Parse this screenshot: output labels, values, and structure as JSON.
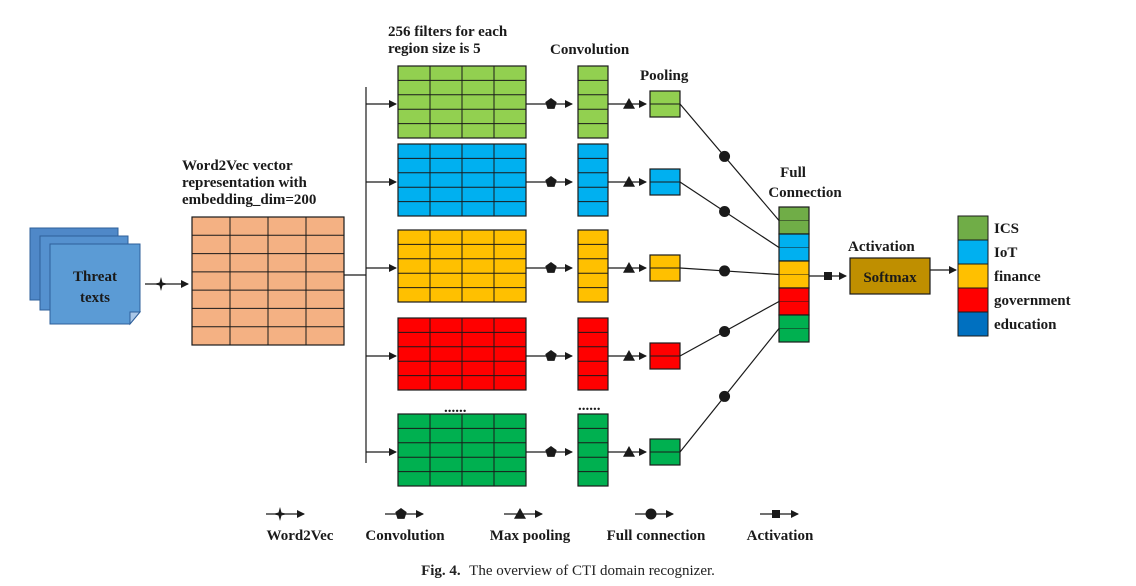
{
  "labels": {
    "threat_texts_line1": "Threat",
    "threat_texts_line2": "texts",
    "word2vec_line1": "Word2Vec vector",
    "word2vec_line2": "representation with",
    "word2vec_line3": "embedding_dim=200",
    "filters_line1": "256 filters for each",
    "filters_line2": "region size is 5",
    "convolution": "Convolution",
    "pooling": "Pooling",
    "full_connection_line1": "Full",
    "full_connection_line2": "Connection",
    "activation": "Activation",
    "softmax": "Softmax",
    "ellipsis": "......"
  },
  "outputs": [
    {
      "label": "ICS",
      "color": "#70ad47"
    },
    {
      "label": "IoT",
      "color": "#00b0f0"
    },
    {
      "label": "finance",
      "color": "#ffc000"
    },
    {
      "label": "government",
      "color": "#ff0000"
    },
    {
      "label": "education",
      "color": "#0070c0"
    }
  ],
  "branch_colors": [
    "#92d050",
    "#00b0f0",
    "#ffc000",
    "#ff0000",
    "#00b050"
  ],
  "fc_colors": [
    "#70ad47",
    "#00b0f0",
    "#ffc000",
    "#ff0000",
    "#00b050"
  ],
  "embedding_color": "#f4b183",
  "input_color": "#5b9bd5",
  "softmax_color": "#bf8f00",
  "legend": [
    {
      "label": "Word2Vec",
      "marker": "star"
    },
    {
      "label": "Convolution",
      "marker": "pentagon"
    },
    {
      "label": "Max pooling",
      "marker": "triangle"
    },
    {
      "label": "Full connection",
      "marker": "circle"
    },
    {
      "label": "Activation",
      "marker": "square"
    }
  ],
  "caption": {
    "prefix": "Fig. 4.",
    "text": "The overview of CTI domain recognizer."
  }
}
